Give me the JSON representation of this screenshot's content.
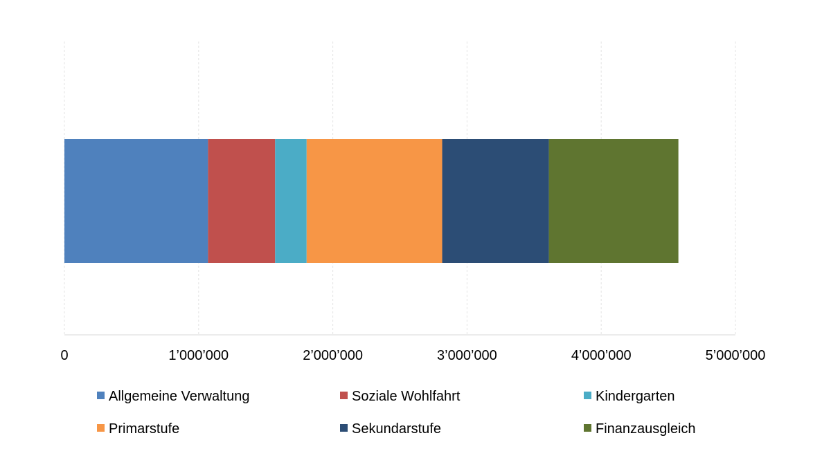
{
  "chart_data": {
    "type": "bar",
    "orientation": "horizontal",
    "stacked": true,
    "title": "",
    "xlabel": "",
    "ylabel": "",
    "xlim": [
      0,
      5000000
    ],
    "grid": true,
    "legend_position": "bottom",
    "x_ticks": [
      0,
      1000000,
      2000000,
      3000000,
      4000000,
      5000000
    ],
    "x_tick_labels": [
      "0",
      "1’000’000",
      "2’000’000",
      "3’000’000",
      "4’000’000",
      "5’000’000"
    ],
    "series": [
      {
        "name": "Allgemeine Verwaltung",
        "values": [
          1070000
        ],
        "color": "#4F81BD"
      },
      {
        "name": "Soziale Wohlfahrt",
        "values": [
          500000
        ],
        "color": "#C0504D"
      },
      {
        "name": "Kindergarten",
        "values": [
          235000
        ],
        "color": "#4BACC6"
      },
      {
        "name": "Primarstufe",
        "values": [
          1010000
        ],
        "color": "#F79646"
      },
      {
        "name": "Sekundarstufe",
        "values": [
          795000
        ],
        "color": "#2C4D75"
      },
      {
        "name": "Finanzausgleich",
        "values": [
          965000
        ],
        "color": "#5F7530"
      }
    ]
  }
}
